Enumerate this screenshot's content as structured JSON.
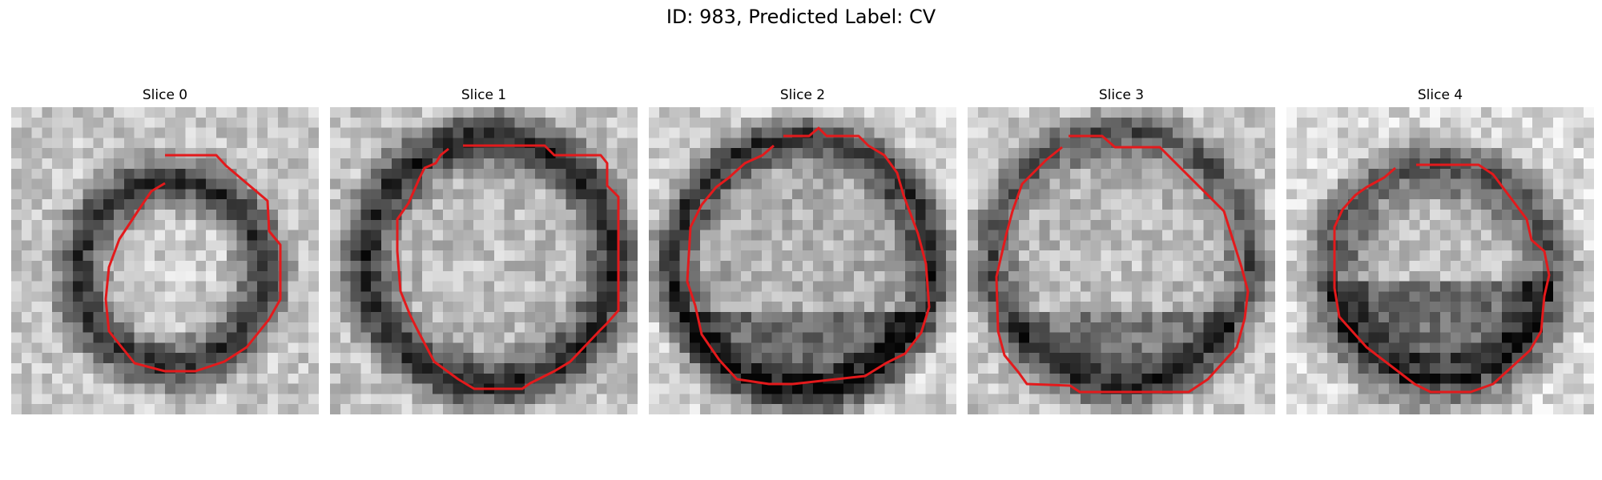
{
  "figure": {
    "title": "ID: 983, Predicted Label: CV"
  },
  "contour_color": "#e31a1c",
  "panels": [
    {
      "title": "Slice 0"
    },
    {
      "title": "Slice 1"
    },
    {
      "title": "Slice 2"
    },
    {
      "title": "Slice 3"
    },
    {
      "title": "Slice 4"
    }
  ]
}
